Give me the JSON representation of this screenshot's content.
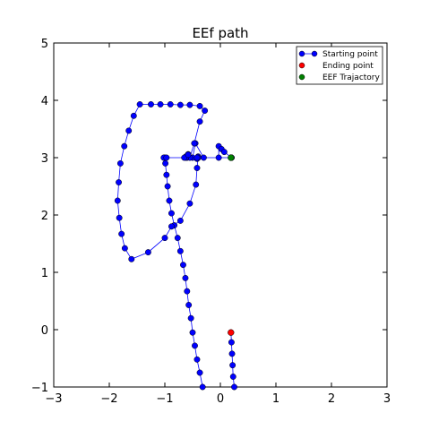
{
  "chart_data": {
    "type": "line",
    "title": "EEf path",
    "xlabel": "",
    "ylabel": "",
    "xlim": [
      -3,
      3
    ],
    "ylim": [
      -1,
      5
    ],
    "xticks": [
      -3,
      -2,
      -1,
      0,
      1,
      2,
      3
    ],
    "yticks": [
      -1,
      0,
      1,
      2,
      3,
      4,
      5
    ],
    "xtick_labels": [
      "−3",
      "−2",
      "−1",
      "0",
      "1",
      "2",
      "3"
    ],
    "ytick_labels": [
      "−1",
      "0",
      "1",
      "2",
      "3",
      "4",
      "5"
    ],
    "grid": false,
    "legend_position": "top-right",
    "series": [
      {
        "name": "Starting point",
        "color": "#0000ff",
        "style": "line-marker",
        "x": [
          0.25,
          0.23,
          0.22,
          0.2,
          0.2,
          0.2,
          -0.32,
          -0.37,
          -0.42,
          -0.46,
          -0.5,
          -0.53,
          -0.57,
          -0.6,
          -0.63,
          -0.67,
          -0.72,
          -0.77,
          -0.83,
          -0.86,
          -0.9,
          -0.94,
          -0.97,
          -1.0,
          -1.0,
          -1.0,
          -0.97,
          -0.6,
          -0.62,
          -0.65,
          -0.42,
          -0.42,
          -0.42,
          -0.44,
          -0.36,
          -0.28,
          -0.38,
          -0.57,
          -0.73,
          -0.98,
          -1.22,
          -1.4,
          -1.58,
          -1.72,
          -1.78,
          -1.83,
          -1.8,
          -1.85,
          -1.82,
          -1.72,
          -1.63,
          -1.55,
          -1.45,
          -1.3,
          -1.1,
          -0.9,
          -0.72,
          -0.5,
          -0.3,
          -0.05,
          0.02,
          0.06,
          0.1,
          0.13,
          0.2
        ],
        "y": [
          -1.0,
          -0.82,
          -0.62,
          -0.42,
          -0.22,
          -0.05,
          -1.0,
          -0.75,
          -0.52,
          -0.28,
          -0.05,
          0.2,
          0.43,
          0.67,
          0.9,
          1.13,
          1.37,
          1.6,
          1.82,
          2.03,
          2.25,
          2.48,
          2.7,
          2.9,
          3.0,
          3.0,
          3.0,
          3.0,
          3.02,
          3.05,
          3.0,
          3.0,
          3.0,
          3.0,
          3.0,
          3.0,
          3.0,
          3.0,
          3.0,
          3.0,
          3.0,
          3.0,
          3.0,
          3.0,
          3.0,
          3.0,
          3.0,
          3.0,
          3.0,
          3.0,
          3.0,
          3.0,
          3.0,
          3.0,
          3.0,
          3.0,
          3.0,
          3.0,
          3.0,
          3.0,
          3.0,
          3.0,
          3.0,
          3.0,
          3.0
        ]
      }
    ],
    "path_points": [
      [
        0.25,
        -1.0
      ],
      [
        0.23,
        -0.82
      ],
      [
        0.22,
        -0.62
      ],
      [
        0.21,
        -0.42
      ],
      [
        0.2,
        -0.22
      ],
      [
        0.19,
        -0.05
      ]
    ],
    "main_path": [
      [
        -0.32,
        -1.0
      ],
      [
        -0.37,
        -0.75
      ],
      [
        -0.42,
        -0.52
      ],
      [
        -0.46,
        -0.28
      ],
      [
        -0.5,
        -0.05
      ],
      [
        -0.53,
        0.2
      ],
      [
        -0.57,
        0.43
      ],
      [
        -0.6,
        0.67
      ],
      [
        -0.63,
        0.9
      ],
      [
        -0.67,
        1.13
      ],
      [
        -0.72,
        1.37
      ],
      [
        -0.77,
        1.6
      ],
      [
        -0.83,
        1.82
      ],
      [
        -0.88,
        2.03
      ],
      [
        -0.92,
        2.25
      ],
      [
        -0.95,
        2.5
      ],
      [
        -0.97,
        2.7
      ],
      [
        -0.99,
        2.9
      ],
      [
        -1.0,
        3.0
      ],
      [
        -1.02,
        3.0
      ],
      [
        -0.97,
        3.0
      ],
      [
        -0.6,
        3.0
      ],
      [
        -0.62,
        3.02
      ],
      [
        -0.58,
        3.06
      ],
      [
        -0.4,
        3.0
      ],
      [
        -0.42,
        2.98
      ],
      [
        -0.4,
        3.02
      ],
      [
        -0.3,
        3.0
      ],
      [
        -0.45,
        3.25
      ],
      [
        -0.5,
        3.0
      ],
      [
        -0.4,
        3.0
      ],
      [
        0.2,
        3.0
      ],
      [
        -0.03,
        3.0
      ],
      [
        -0.03,
        3.2
      ],
      [
        0.02,
        3.15
      ],
      [
        0.07,
        3.1
      ],
      [
        0.2,
        3.0
      ],
      [
        -0.4,
        3.0
      ],
      [
        -0.42,
        2.82
      ],
      [
        -0.44,
        2.53
      ],
      [
        -0.55,
        2.2
      ],
      [
        -0.72,
        1.9
      ],
      [
        -0.88,
        1.8
      ],
      [
        -1.0,
        1.6
      ],
      [
        -1.3,
        1.35
      ],
      [
        -1.6,
        1.23
      ],
      [
        -1.72,
        1.42
      ],
      [
        -1.78,
        1.67
      ],
      [
        -1.82,
        1.95
      ],
      [
        -1.85,
        2.25
      ],
      [
        -1.83,
        2.57
      ],
      [
        -1.8,
        2.9
      ],
      [
        -1.73,
        3.2
      ],
      [
        -1.65,
        3.47
      ],
      [
        -1.56,
        3.73
      ],
      [
        -1.45,
        3.93
      ],
      [
        -1.25,
        3.93
      ],
      [
        -1.08,
        3.93
      ],
      [
        -0.9,
        3.93
      ],
      [
        -0.72,
        3.92
      ],
      [
        -0.55,
        3.92
      ],
      [
        -0.37,
        3.9
      ],
      [
        -0.28,
        3.82
      ],
      [
        -0.37,
        3.63
      ],
      [
        -0.47,
        3.25
      ],
      [
        -0.55,
        3.0
      ],
      [
        -0.62,
        3.0
      ],
      [
        -0.65,
        3.0
      ],
      [
        -0.58,
        3.05
      ],
      [
        -0.42,
        3.0
      ],
      [
        0.2,
        3.0
      ]
    ],
    "ending_point": {
      "name": "Ending point",
      "color": "#ff0000",
      "x": 0.19,
      "y": -0.05
    },
    "trajectory_point": {
      "name": "EEF Trajactory",
      "color": "#008000",
      "x": 0.19,
      "y": 3.0
    }
  },
  "legend": {
    "items": [
      {
        "label": "Starting point",
        "color": "#0000ff",
        "kind": "line-marker"
      },
      {
        "label": "Ending point",
        "color": "#ff0000",
        "kind": "marker"
      },
      {
        "label": "EEF Trajactory",
        "color": "#008000",
        "kind": "marker"
      }
    ]
  }
}
